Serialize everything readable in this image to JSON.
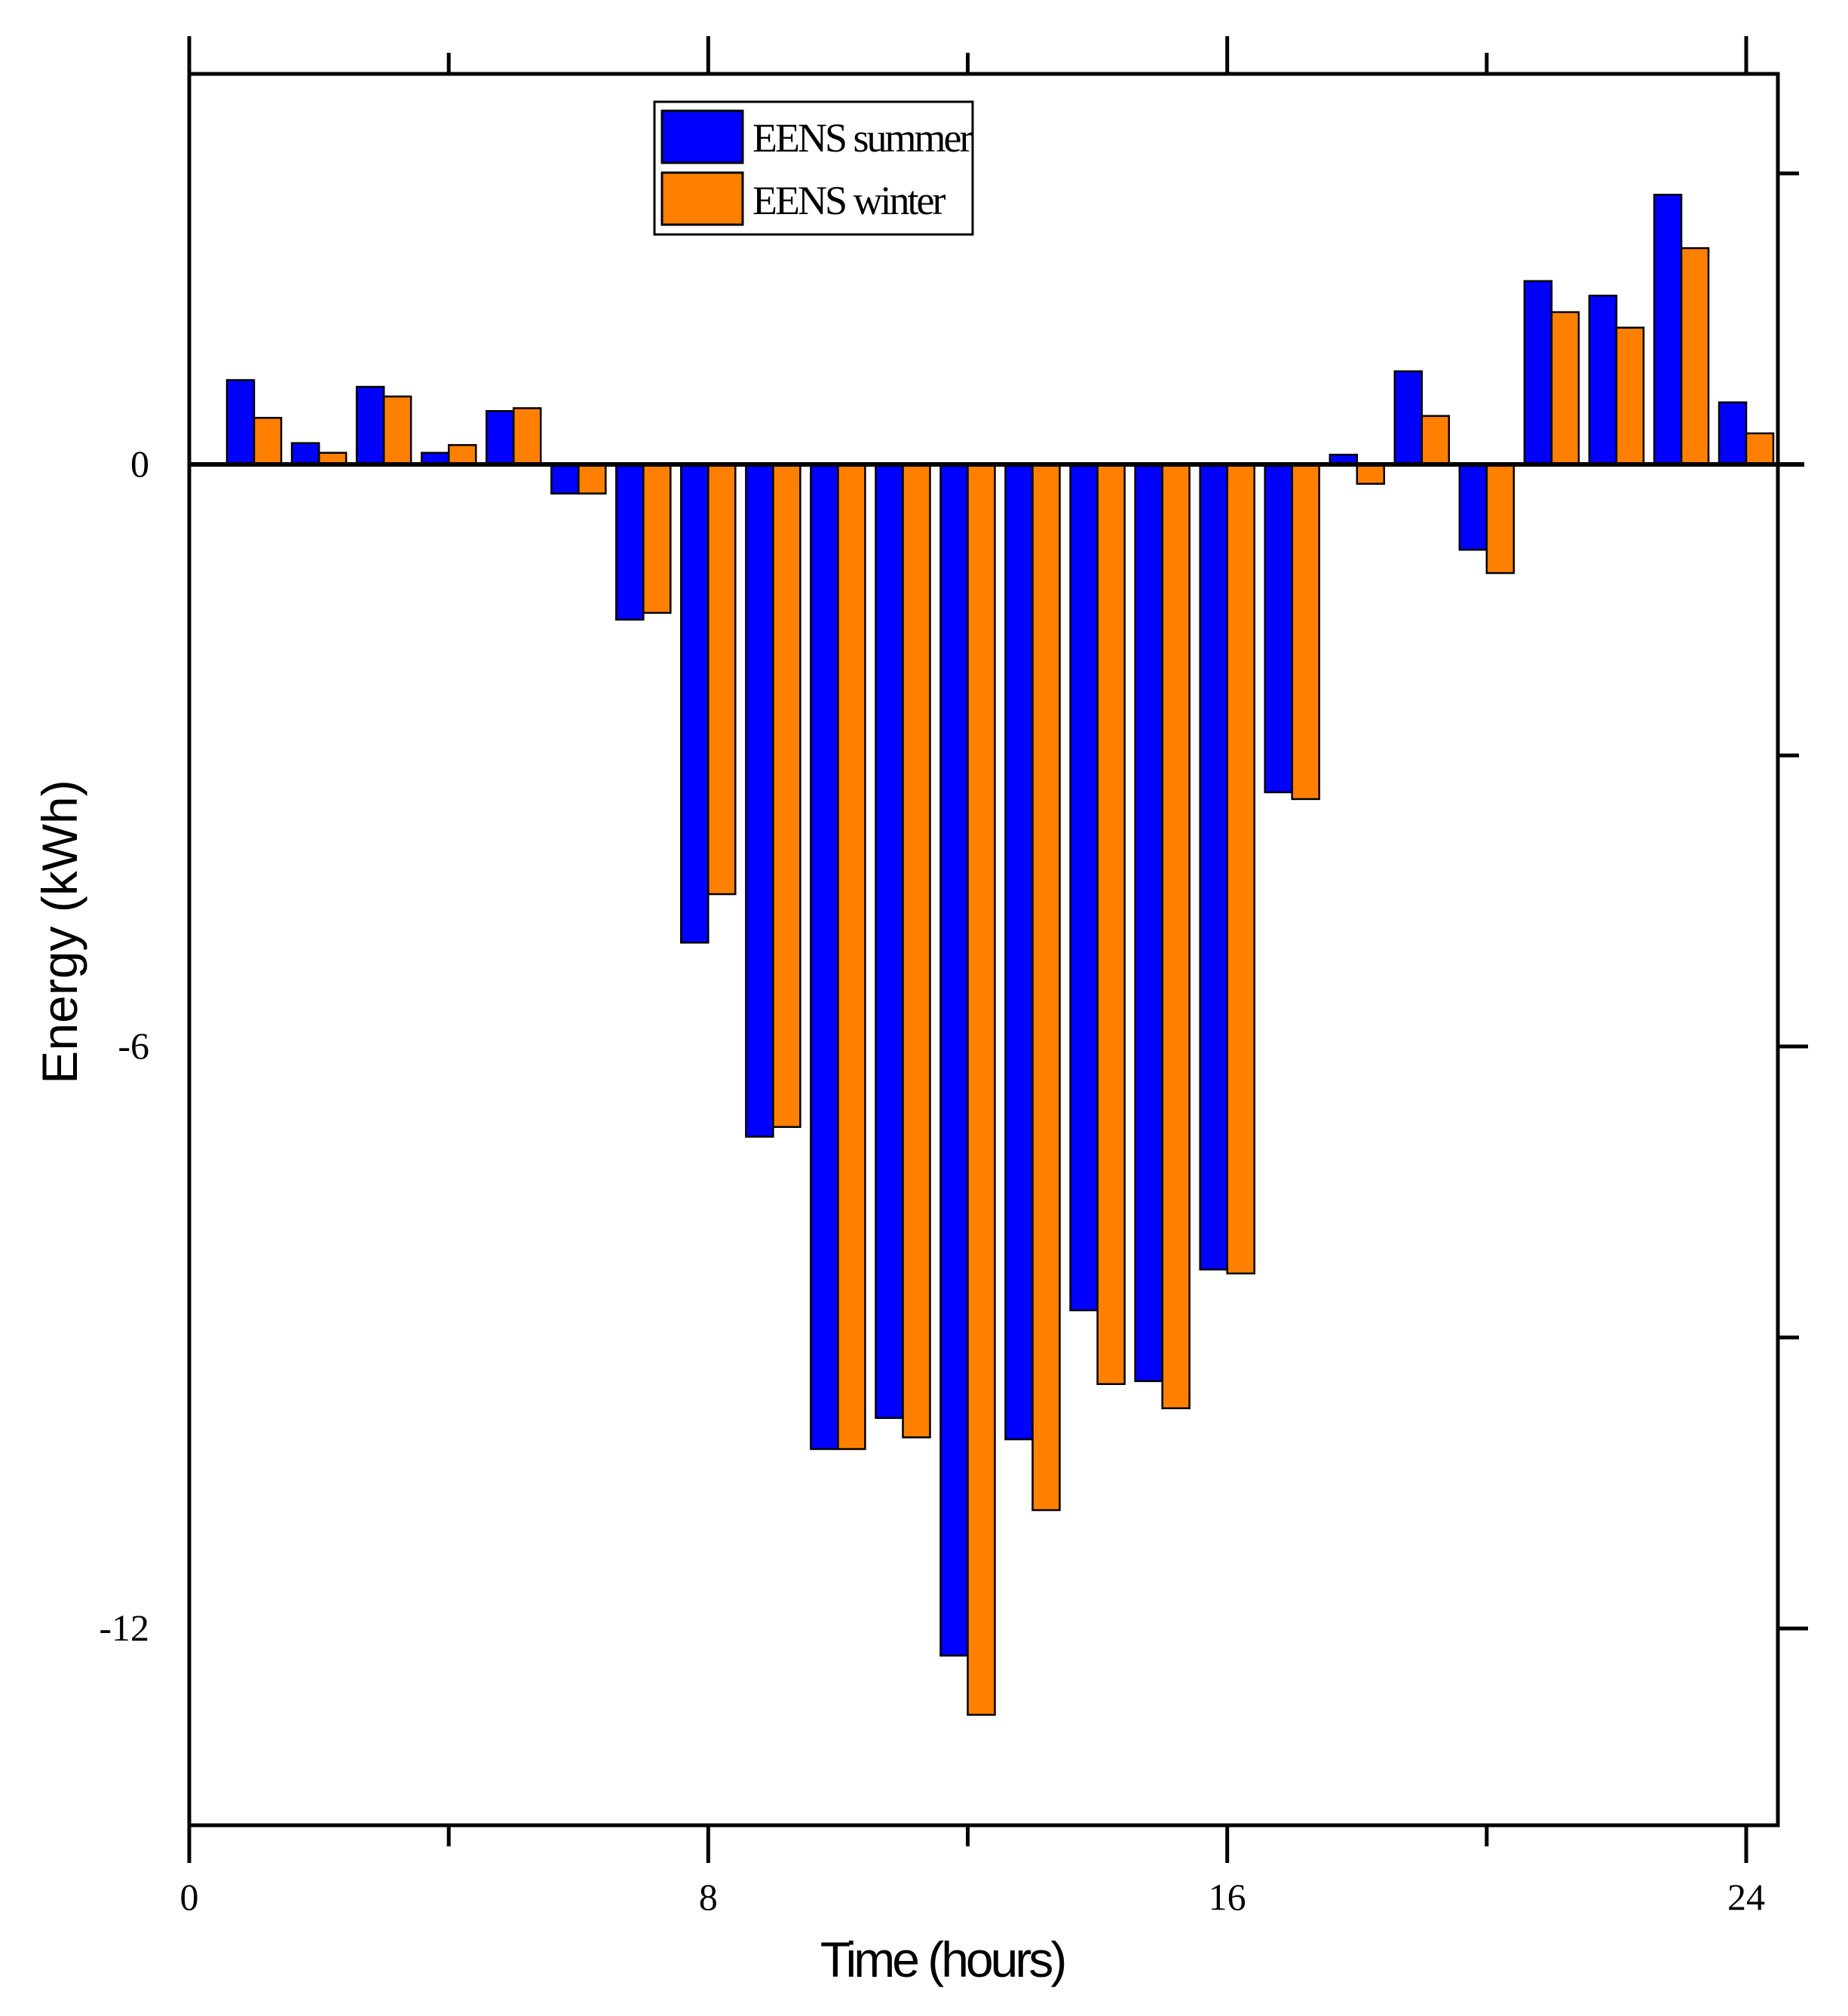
{
  "chart_data": {
    "type": "bar",
    "title": "",
    "xlabel": "Time (hours)",
    "ylabel": "Energy (kWh)",
    "xlim": [
      0,
      24.5
    ],
    "ylim": [
      -14,
      4
    ],
    "x_ticks": [
      0,
      8,
      16,
      24
    ],
    "y_ticks": [
      0,
      -6,
      -12
    ],
    "legend": "top-center",
    "categories": [
      1,
      2,
      3,
      4,
      5,
      6,
      7,
      8,
      9,
      10,
      11,
      12,
      13,
      14,
      15,
      16,
      17,
      18,
      19,
      20,
      21,
      22,
      23,
      24
    ],
    "series": [
      {
        "name": "EENS summer",
        "color": "#0000ff",
        "values": [
          0.87,
          0.22,
          0.8,
          0.12,
          0.55,
          -0.3,
          -1.6,
          -4.93,
          -6.93,
          -10.15,
          -9.83,
          -12.28,
          -10.05,
          -8.72,
          -9.45,
          -8.3,
          -3.38,
          0.1,
          0.96,
          -0.88,
          1.89,
          1.74,
          2.78,
          0.64
        ]
      },
      {
        "name": "EENS winter",
        "color": "#ff8000",
        "values": [
          0.48,
          0.12,
          0.7,
          0.2,
          0.58,
          -0.3,
          -1.53,
          -4.43,
          -6.83,
          -10.15,
          -10.03,
          -12.89,
          -10.78,
          -9.48,
          -9.73,
          -8.34,
          -3.45,
          -0.2,
          0.5,
          -1.12,
          1.57,
          1.41,
          2.23,
          0.32
        ]
      }
    ]
  }
}
